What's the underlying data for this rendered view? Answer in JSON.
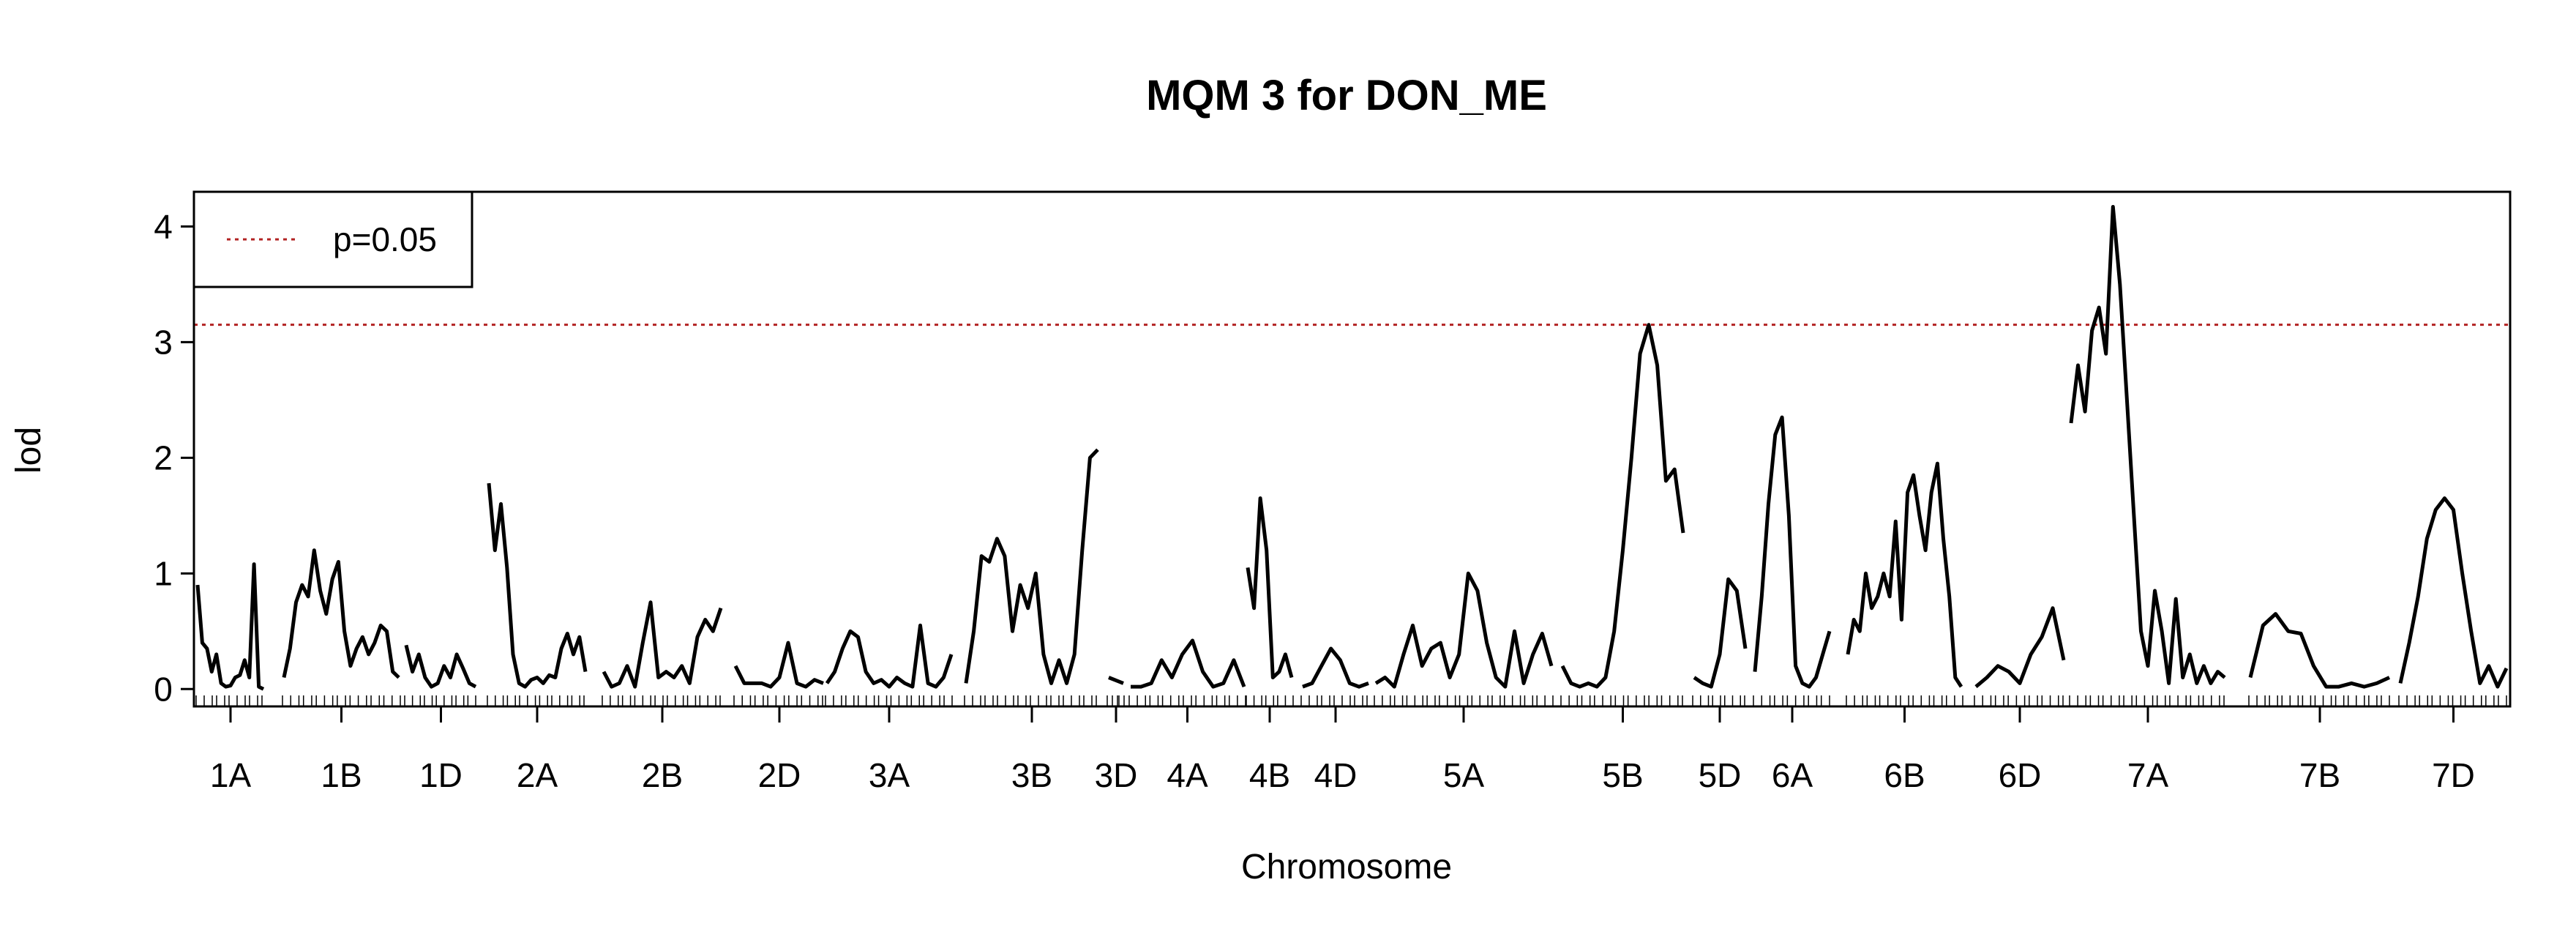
{
  "chart_data": {
    "type": "line",
    "title": "MQM 3 for DON_ME",
    "xlabel": "Chromosome",
    "ylabel": "lod",
    "ylim": [
      -0.15,
      4.3
    ],
    "yticks": [
      0,
      1,
      2,
      3,
      4
    ],
    "threshold": {
      "label": "p=0.05",
      "value": 3.15,
      "color": "#b22222"
    },
    "legend_position": "top-left",
    "series_color": "#000000",
    "chromosomes": [
      {
        "name": "1A",
        "lod": [
          0.9,
          0.4,
          0.35,
          0.15,
          0.3,
          0.05,
          0.02,
          0.03,
          0.1,
          0.12,
          0.25,
          0.1,
          1.08,
          0.02,
          0.0
        ]
      },
      {
        "name": "1B",
        "lod": [
          0.1,
          0.35,
          0.75,
          0.9,
          0.8,
          1.2,
          0.85,
          0.65,
          0.95,
          1.1,
          0.5,
          0.2,
          0.35,
          0.45,
          0.3,
          0.4,
          0.55,
          0.5,
          0.15,
          0.1
        ]
      },
      {
        "name": "1D",
        "lod": [
          0.38,
          0.15,
          0.3,
          0.1,
          0.02,
          0.05,
          0.2,
          0.1,
          0.3,
          0.18,
          0.05,
          0.02
        ]
      },
      {
        "name": "2A",
        "lod": [
          1.78,
          1.2,
          1.6,
          1.05,
          0.3,
          0.05,
          0.02,
          0.08,
          0.1,
          0.05,
          0.12,
          0.1,
          0.35,
          0.48,
          0.3,
          0.45,
          0.15
        ]
      },
      {
        "name": "2B",
        "lod": [
          0.15,
          0.02,
          0.05,
          0.2,
          0.02,
          0.4,
          0.75,
          0.1,
          0.15,
          0.1,
          0.2,
          0.05,
          0.45,
          0.6,
          0.5,
          0.7
        ]
      },
      {
        "name": "2D",
        "lod": [
          0.2,
          0.05,
          0.05,
          0.05,
          0.02,
          0.1,
          0.4,
          0.05,
          0.02,
          0.08,
          0.05
        ]
      },
      {
        "name": "3A",
        "lod": [
          0.05,
          0.15,
          0.35,
          0.5,
          0.45,
          0.15,
          0.05,
          0.08,
          0.02,
          0.1,
          0.05,
          0.02,
          0.55,
          0.05,
          0.02,
          0.1,
          0.3
        ]
      },
      {
        "name": "3B",
        "lod": [
          0.05,
          0.5,
          1.15,
          1.1,
          1.3,
          1.15,
          0.5,
          0.9,
          0.7,
          1.0,
          0.3,
          0.05,
          0.25,
          0.05,
          0.3,
          1.2,
          2.0,
          2.07
        ]
      },
      {
        "name": "3D",
        "lod": [
          0.1,
          0.05
        ]
      },
      {
        "name": "4A",
        "lod": [
          0.02,
          0.02,
          0.05,
          0.25,
          0.1,
          0.3,
          0.42,
          0.15,
          0.02,
          0.05,
          0.25,
          0.02
        ]
      },
      {
        "name": "4B",
        "lod": [
          1.05,
          0.7,
          1.65,
          1.2,
          0.1,
          0.15,
          0.3,
          0.1
        ]
      },
      {
        "name": "4D",
        "lod": [
          0.02,
          0.05,
          0.2,
          0.35,
          0.25,
          0.05,
          0.02,
          0.05
        ]
      },
      {
        "name": "5A",
        "lod": [
          0.05,
          0.1,
          0.02,
          0.3,
          0.55,
          0.2,
          0.35,
          0.4,
          0.1,
          0.3,
          1.0,
          0.85,
          0.4,
          0.1,
          0.02,
          0.5,
          0.05,
          0.3,
          0.48,
          0.2
        ]
      },
      {
        "name": "5B",
        "lod": [
          0.2,
          0.05,
          0.02,
          0.05,
          0.02,
          0.1,
          0.5,
          1.2,
          2.0,
          2.9,
          3.15,
          2.8,
          1.8,
          1.9,
          1.35
        ]
      },
      {
        "name": "5D",
        "lod": [
          0.1,
          0.05,
          0.02,
          0.3,
          0.95,
          0.85,
          0.35
        ]
      },
      {
        "name": "6A",
        "lod": [
          0.15,
          0.8,
          1.6,
          2.2,
          2.35,
          1.5,
          0.2,
          0.05,
          0.02,
          0.1,
          0.3,
          0.5
        ]
      },
      {
        "name": "6B",
        "lod": [
          0.3,
          0.6,
          0.5,
          1.0,
          0.7,
          0.8,
          1.0,
          0.8,
          1.45,
          0.6,
          1.7,
          1.85,
          1.5,
          1.2,
          1.7,
          1.95,
          1.3,
          0.8,
          0.1,
          0.02
        ]
      },
      {
        "name": "6D",
        "lod": [
          0.02,
          0.1,
          0.2,
          0.15,
          0.05,
          0.3,
          0.45,
          0.7,
          0.25
        ]
      },
      {
        "name": "7A",
        "lod": [
          2.3,
          2.8,
          2.4,
          3.1,
          3.3,
          2.9,
          4.17,
          3.5,
          2.5,
          1.5,
          0.5,
          0.2,
          0.85,
          0.5,
          0.05,
          0.78,
          0.1,
          0.3,
          0.05,
          0.2,
          0.05,
          0.15,
          0.1
        ]
      },
      {
        "name": "7B",
        "lod": [
          0.1,
          0.55,
          0.65,
          0.5,
          0.48,
          0.2,
          0.02,
          0.02,
          0.05,
          0.02,
          0.05,
          0.1
        ]
      },
      {
        "name": "7D",
        "lod": [
          0.05,
          0.4,
          0.8,
          1.3,
          1.55,
          1.65,
          1.55,
          1.0,
          0.5,
          0.05,
          0.2,
          0.02,
          0.18
        ]
      }
    ]
  }
}
